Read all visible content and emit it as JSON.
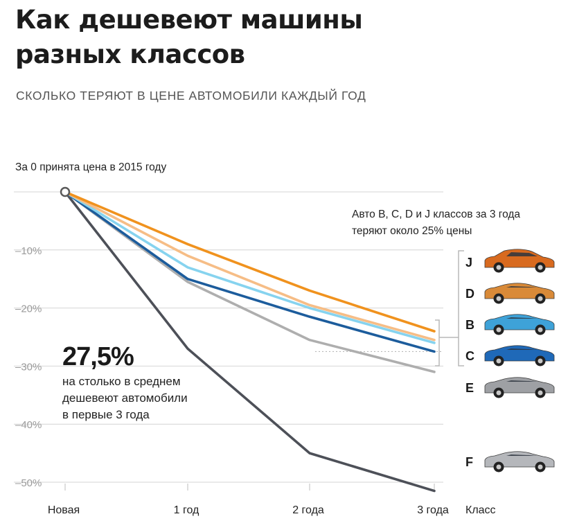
{
  "title": "Как дешевеют машины разных классов",
  "subtitle": "СКОЛЬКО ТЕРЯЮТ В ЦЕНЕ АВТОМОБИЛИ КАЖДЫЙ ГОД",
  "chart_data": {
    "type": "line",
    "title": "Как дешевеют машины разных классов",
    "subtitle": "СКОЛЬКО ТЕРЯЮТ В ЦЕНЕ АВТОМОБИЛИ КАЖДЫЙ ГОД",
    "note": "За 0 принята цена в 2015 году",
    "categories": [
      "Новая",
      "1 год",
      "2 года",
      "3 года"
    ],
    "class_axis_label": "Класс",
    "ylim": [
      -52,
      0
    ],
    "yticks": [
      {
        "value": -10,
        "label": "–10%"
      },
      {
        "value": -20,
        "label": "–20%"
      },
      {
        "value": -30,
        "label": "–30%"
      },
      {
        "value": -40,
        "label": "–40%"
      },
      {
        "value": -50,
        "label": "–50%"
      }
    ],
    "grid": true,
    "series": [
      {
        "name": "J",
        "color": "#f0921e",
        "values": [
          0,
          -9,
          -17,
          -24
        ]
      },
      {
        "name": "D",
        "color": "#f6bd86",
        "values": [
          0,
          -11,
          -19.5,
          -25.5
        ]
      },
      {
        "name": "B",
        "color": "#86d3ef",
        "values": [
          0,
          -13,
          -20,
          -26
        ]
      },
      {
        "name": "C",
        "color": "#1c5c9c",
        "values": [
          0,
          -15,
          -21.5,
          -27.5
        ]
      },
      {
        "name": "E",
        "color": "#aeaeae",
        "values": [
          0,
          -15.5,
          -25.5,
          -31
        ]
      },
      {
        "name": "F",
        "color": "#4d5058",
        "values": [
          0,
          -27,
          -45,
          -51.5
        ]
      }
    ],
    "annotations": {
      "group_note": "Авто B, C, D и J классов за 3 года теряют около 25% цены",
      "average_value": "27,5%",
      "average_text": [
        "на столько в среднем",
        "дешевеют автомобили",
        "в первые 3 года"
      ]
    },
    "legend": {
      "position": "right",
      "items": [
        {
          "label": "J",
          "car_color": "#d86a1f",
          "car_type": "suv-icon"
        },
        {
          "label": "D",
          "car_color": "#d98a38",
          "car_type": "sedan-icon"
        },
        {
          "label": "B",
          "car_color": "#3ea2d8",
          "car_type": "hatch-icon"
        },
        {
          "label": "C",
          "car_color": "#1f69b8",
          "car_type": "sedan-icon"
        },
        {
          "label": "E",
          "car_color": "#9ea0a4",
          "car_type": "sedan-icon"
        },
        {
          "label": "F",
          "car_color": "#b5b7bb",
          "car_type": "sedan-icon"
        }
      ]
    }
  }
}
